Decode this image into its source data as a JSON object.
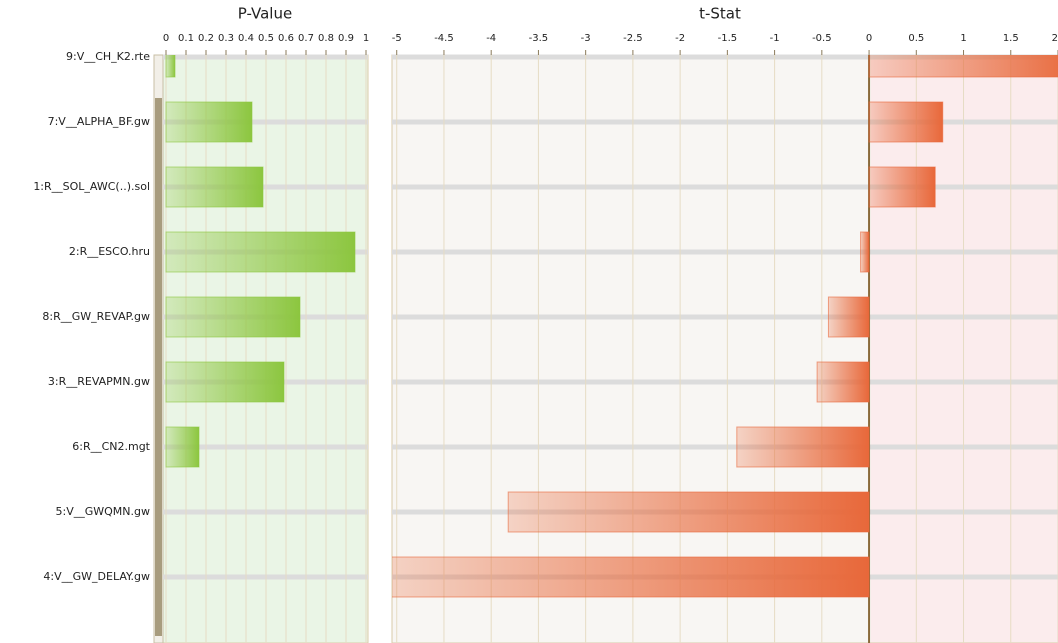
{
  "chart_data": [
    {
      "type": "bar",
      "title": "P-Value",
      "categories": [
        "9:V__CH_K2.rte",
        "7:V__ALPHA_BF.gw",
        "1:R__SOL_AWC(..).sol",
        "2:R__ESCO.hru",
        "8:R__GW_REVAP.gw",
        "3:R__REVAPMN.gw",
        "6:R__CN2.mgt",
        "5:V__GWQMN.gw",
        "4:V__GW_DELAY.gw"
      ],
      "values": [
        0.045,
        0.43,
        0.485,
        0.945,
        0.67,
        0.59,
        0.165,
        0,
        0
      ],
      "color": "#8cc63f",
      "xlim": [
        0,
        1
      ],
      "xticks": [
        0,
        0.1,
        0.2,
        0.3,
        0.4,
        0.5,
        0.6,
        0.7,
        0.8,
        0.9,
        1
      ],
      "grid": true
    },
    {
      "type": "bar",
      "title": "t-Stat",
      "values": [
        2.2,
        0.78,
        0.7,
        -0.09,
        -0.43,
        -0.55,
        -1.4,
        -3.82,
        -5.1
      ],
      "color": "#e8683a",
      "xlim": [
        -5.05,
        2
      ],
      "xticks": [
        -5,
        -4.5,
        -4,
        -3.5,
        -3,
        -2.5,
        -2,
        -1.5,
        -1,
        -0.5,
        0,
        0.5,
        1,
        1.5,
        2
      ],
      "grid": true
    }
  ]
}
